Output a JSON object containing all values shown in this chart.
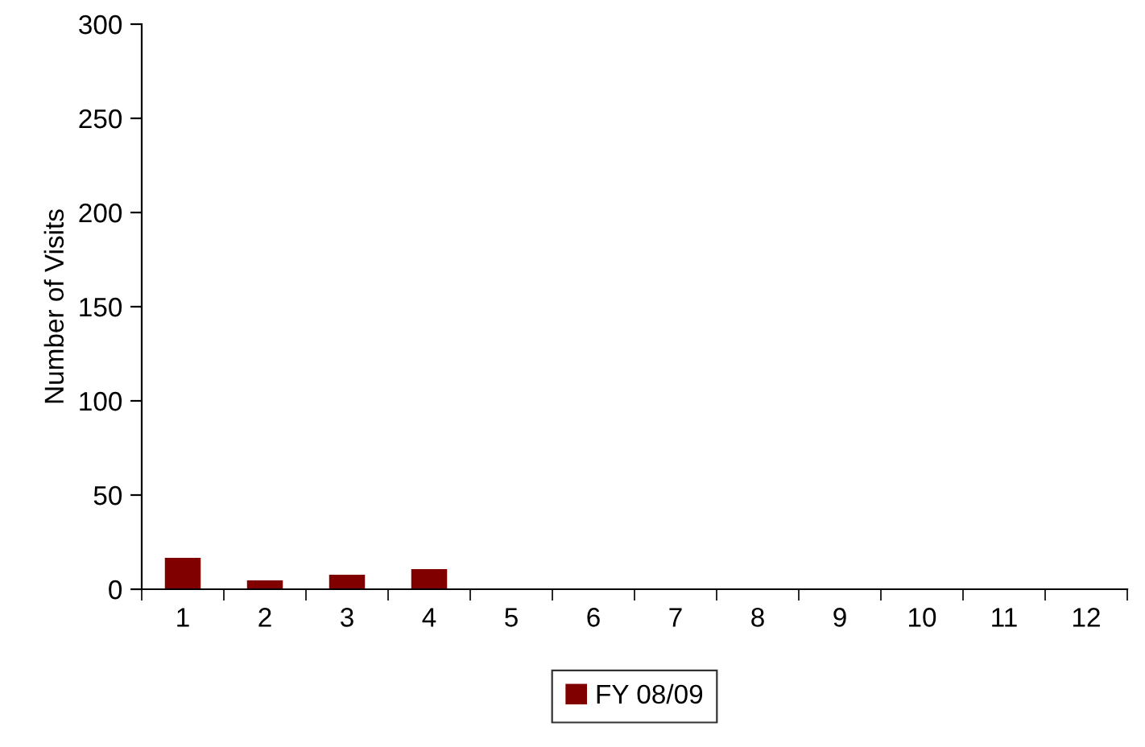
{
  "chart_data": {
    "type": "bar",
    "ylabel": "Number of Visits",
    "categories": [
      "1",
      "2",
      "3",
      "4",
      "5",
      "6",
      "7",
      "8",
      "9",
      "10",
      "11",
      "12"
    ],
    "series": [
      {
        "name": "FY 08/09",
        "color": "#800000",
        "values": [
          17,
          5,
          8,
          11,
          null,
          null,
          null,
          null,
          null,
          null,
          null,
          null
        ]
      }
    ],
    "ylim": [
      0,
      300
    ],
    "yticks": [
      0,
      50,
      100,
      150,
      200,
      250,
      300
    ],
    "grid": false,
    "legend": "bottom"
  }
}
